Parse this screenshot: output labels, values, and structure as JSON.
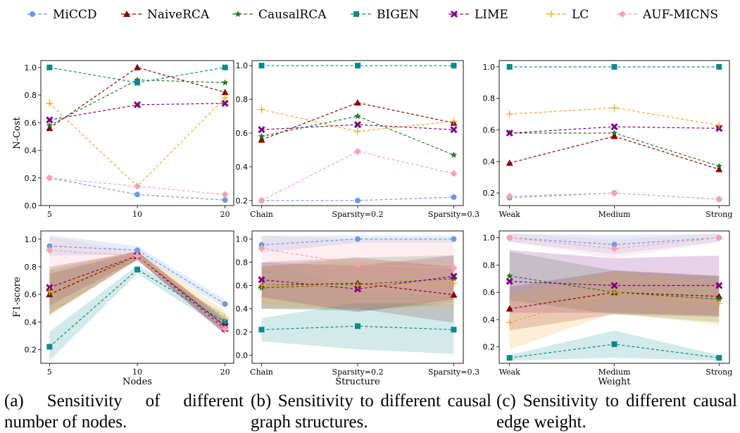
{
  "legend": [
    {
      "name": "MiCCD",
      "color": "#6a9ae6",
      "marker": "circle"
    },
    {
      "name": "NaiveRCA",
      "color": "#8b0000",
      "marker": "triangle"
    },
    {
      "name": "CausalRCA",
      "color": "#1f7a1f",
      "marker": "star"
    },
    {
      "name": "BIGEN",
      "color": "#0b8a8a",
      "marker": "square"
    },
    {
      "name": "LIME",
      "color": "#800080",
      "marker": "x"
    },
    {
      "name": "LC",
      "color": "#f6a623",
      "marker": "plus"
    },
    {
      "name": "AUF-MICNS",
      "color": "#f7a1b0",
      "marker": "diamond"
    }
  ],
  "captions": {
    "a": "(a) Sensitivity of different number of nodes.",
    "b": "(b) Sensitivity to different causal graph structures.",
    "c": "(c) Sensitivity to different causal edge weight."
  },
  "chart_data": [
    {
      "id": "a-ncost",
      "type": "line",
      "ylabel": "N-Cost",
      "xlabel": "",
      "categories": [
        "5",
        "10",
        "20"
      ],
      "ylim": [
        0.0,
        1.05
      ],
      "yticks": [
        0.0,
        0.2,
        0.4,
        0.6,
        0.8,
        1.0
      ],
      "series": [
        {
          "name": "MiCCD",
          "values": [
            0.2,
            0.08,
            0.04
          ]
        },
        {
          "name": "NaiveRCA",
          "values": [
            0.56,
            1.0,
            0.82
          ]
        },
        {
          "name": "CausalRCA",
          "values": [
            0.58,
            0.91,
            0.89
          ]
        },
        {
          "name": "BIGEN",
          "values": [
            1.0,
            0.89,
            1.0
          ]
        },
        {
          "name": "LIME",
          "values": [
            0.62,
            0.73,
            0.74
          ]
        },
        {
          "name": "LC",
          "values": [
            0.74,
            0.14,
            0.78
          ]
        },
        {
          "name": "AUF-MICNS",
          "values": [
            0.2,
            0.14,
            0.08
          ]
        }
      ]
    },
    {
      "id": "b-ncost",
      "type": "line",
      "ylabel": "",
      "xlabel": "",
      "categories": [
        "Chain",
        "Sparsity=0.2",
        "Sparsity=0.3"
      ],
      "ylim": [
        0.17,
        1.03
      ],
      "yticks": [
        0.2,
        0.4,
        0.6,
        0.8,
        1.0
      ],
      "series": [
        {
          "name": "MiCCD",
          "values": [
            0.2,
            0.2,
            0.22
          ]
        },
        {
          "name": "NaiveRCA",
          "values": [
            0.56,
            0.78,
            0.66
          ]
        },
        {
          "name": "CausalRCA",
          "values": [
            0.58,
            0.7,
            0.47
          ]
        },
        {
          "name": "BIGEN",
          "values": [
            1.0,
            1.0,
            1.0
          ]
        },
        {
          "name": "LIME",
          "values": [
            0.62,
            0.65,
            0.62
          ]
        },
        {
          "name": "LC",
          "values": [
            0.74,
            0.61,
            0.67
          ]
        },
        {
          "name": "AUF-MICNS",
          "values": [
            0.2,
            0.49,
            0.36
          ]
        }
      ]
    },
    {
      "id": "c-ncost",
      "type": "line",
      "ylabel": "",
      "xlabel": "",
      "categories": [
        "Weak",
        "Medium",
        "Strong"
      ],
      "ylim": [
        0.12,
        1.04
      ],
      "yticks": [
        0.2,
        0.4,
        0.6,
        0.8,
        1.0
      ],
      "series": [
        {
          "name": "MiCCD",
          "values": [
            0.17,
            0.2,
            0.16
          ]
        },
        {
          "name": "NaiveRCA",
          "values": [
            0.39,
            0.56,
            0.35
          ]
        },
        {
          "name": "CausalRCA",
          "values": [
            0.58,
            0.58,
            0.37
          ]
        },
        {
          "name": "BIGEN",
          "values": [
            1.0,
            1.0,
            1.0
          ]
        },
        {
          "name": "LIME",
          "values": [
            0.58,
            0.62,
            0.61
          ]
        },
        {
          "name": "LC",
          "values": [
            0.7,
            0.74,
            0.63
          ]
        },
        {
          "name": "AUF-MICNS",
          "values": [
            0.18,
            0.2,
            0.16
          ]
        }
      ]
    },
    {
      "id": "a-f1",
      "type": "line",
      "ylabel": "F1-score",
      "xlabel": "Nodes",
      "categories": [
        "5",
        "10",
        "20"
      ],
      "ylim": [
        0.1,
        1.06
      ],
      "yticks": [
        0.2,
        0.4,
        0.6,
        0.8,
        1.0
      ],
      "series": [
        {
          "name": "MiCCD",
          "values": [
            0.95,
            0.92,
            0.53
          ],
          "band": [
            [
              0.88,
              1.03
            ],
            [
              0.89,
              0.95
            ],
            [
              0.5,
              0.56
            ]
          ]
        },
        {
          "name": "NaiveRCA",
          "values": [
            0.6,
            0.88,
            0.35
          ],
          "band": [
            [
              0.45,
              0.75
            ],
            [
              0.85,
              0.91
            ],
            [
              0.31,
              0.4
            ]
          ]
        },
        {
          "name": "CausalRCA",
          "values": [
            0.62,
            0.88,
            0.37
          ],
          "band": [
            [
              0.46,
              0.78
            ],
            [
              0.85,
              0.91
            ],
            [
              0.32,
              0.42
            ]
          ]
        },
        {
          "name": "BIGEN",
          "values": [
            0.22,
            0.78,
            0.4
          ],
          "band": [
            [
              0.12,
              0.33
            ],
            [
              0.75,
              0.81
            ],
            [
              0.34,
              0.46
            ]
          ]
        },
        {
          "name": "LIME",
          "values": [
            0.65,
            0.88,
            0.37
          ],
          "band": [
            [
              0.52,
              0.8
            ],
            [
              0.85,
              0.91
            ],
            [
              0.31,
              0.42
            ]
          ]
        },
        {
          "name": "LC",
          "values": [
            0.62,
            0.88,
            0.43
          ],
          "band": [
            [
              0.45,
              0.8
            ],
            [
              0.85,
              0.91
            ],
            [
              0.38,
              0.48
            ]
          ]
        },
        {
          "name": "AUF-MICNS",
          "values": [
            0.92,
            0.88,
            0.35
          ],
          "band": [
            [
              0.8,
              1.02
            ],
            [
              0.85,
              0.91
            ],
            [
              0.31,
              0.4
            ]
          ]
        }
      ]
    },
    {
      "id": "b-f1",
      "type": "line",
      "ylabel": "",
      "xlabel": "Structure",
      "categories": [
        "Chain",
        "Sparsity=0.2",
        "Sparsity=0.3"
      ],
      "ylim": [
        -0.07,
        1.07
      ],
      "yticks": [
        0.0,
        0.2,
        0.4,
        0.6,
        0.8,
        1.0
      ],
      "series": [
        {
          "name": "MiCCD",
          "values": [
            0.95,
            1.0,
            1.0
          ],
          "band": [
            [
              0.88,
              1.03
            ],
            [
              0.97,
              1.03
            ],
            [
              0.97,
              1.03
            ]
          ]
        },
        {
          "name": "NaiveRCA",
          "values": [
            0.6,
            0.62,
            0.52
          ],
          "band": [
            [
              0.4,
              0.8
            ],
            [
              0.4,
              0.84
            ],
            [
              0.28,
              0.76
            ]
          ]
        },
        {
          "name": "CausalRCA",
          "values": [
            0.58,
            0.61,
            0.66
          ],
          "band": [
            [
              0.4,
              0.76
            ],
            [
              0.38,
              0.84
            ],
            [
              0.45,
              0.86
            ]
          ]
        },
        {
          "name": "BIGEN",
          "values": [
            0.22,
            0.25,
            0.22
          ],
          "band": [
            [
              0.12,
              0.32
            ],
            [
              0.05,
              0.45
            ],
            [
              0.01,
              0.44
            ]
          ]
        },
        {
          "name": "LIME",
          "values": [
            0.65,
            0.57,
            0.68
          ],
          "band": [
            [
              0.5,
              0.8
            ],
            [
              0.37,
              0.77
            ],
            [
              0.48,
              0.86
            ]
          ]
        },
        {
          "name": "LC",
          "values": [
            0.6,
            0.6,
            0.62
          ],
          "band": [
            [
              0.44,
              0.76
            ],
            [
              0.4,
              0.8
            ],
            [
              0.42,
              0.82
            ]
          ]
        },
        {
          "name": "AUF-MICNS",
          "values": [
            0.92,
            0.78,
            0.75
          ],
          "band": [
            [
              0.82,
              1.03
            ],
            [
              0.56,
              1.0
            ],
            [
              0.5,
              1.0
            ]
          ]
        }
      ]
    },
    {
      "id": "c-f1",
      "type": "line",
      "ylabel": "",
      "xlabel": "Weight",
      "categories": [
        "Weak",
        "Medium",
        "Strong"
      ],
      "ylim": [
        0.08,
        1.05
      ],
      "yticks": [
        0.2,
        0.4,
        0.6,
        0.8,
        1.0
      ],
      "series": [
        {
          "name": "MiCCD",
          "values": [
            1.0,
            0.95,
            1.0
          ],
          "band": [
            [
              0.97,
              1.03
            ],
            [
              0.88,
              1.02
            ],
            [
              0.97,
              1.03
            ]
          ]
        },
        {
          "name": "NaiveRCA",
          "values": [
            0.48,
            0.6,
            0.57
          ],
          "band": [
            [
              0.32,
              0.64
            ],
            [
              0.44,
              0.76
            ],
            [
              0.42,
              0.72
            ]
          ]
        },
        {
          "name": "CausalRCA",
          "values": [
            0.72,
            0.6,
            0.55
          ],
          "band": [
            [
              0.54,
              0.9
            ],
            [
              0.44,
              0.76
            ],
            [
              0.38,
              0.72
            ]
          ]
        },
        {
          "name": "BIGEN",
          "values": [
            0.12,
            0.22,
            0.12
          ],
          "band": [
            [
              0.1,
              0.14
            ],
            [
              0.12,
              0.32
            ],
            [
              0.1,
              0.14
            ]
          ]
        },
        {
          "name": "LIME",
          "values": [
            0.68,
            0.65,
            0.65
          ],
          "band": [
            [
              0.45,
              0.91
            ],
            [
              0.45,
              0.85
            ],
            [
              0.43,
              0.87
            ]
          ]
        },
        {
          "name": "LC",
          "values": [
            0.38,
            0.6,
            0.52
          ],
          "band": [
            [
              0.18,
              0.58
            ],
            [
              0.45,
              0.75
            ],
            [
              0.36,
              0.68
            ]
          ]
        },
        {
          "name": "AUF-MICNS",
          "values": [
            1.0,
            0.92,
            1.0
          ],
          "band": [
            [
              0.97,
              1.03
            ],
            [
              0.85,
              0.99
            ],
            [
              0.97,
              1.03
            ]
          ]
        }
      ]
    }
  ]
}
